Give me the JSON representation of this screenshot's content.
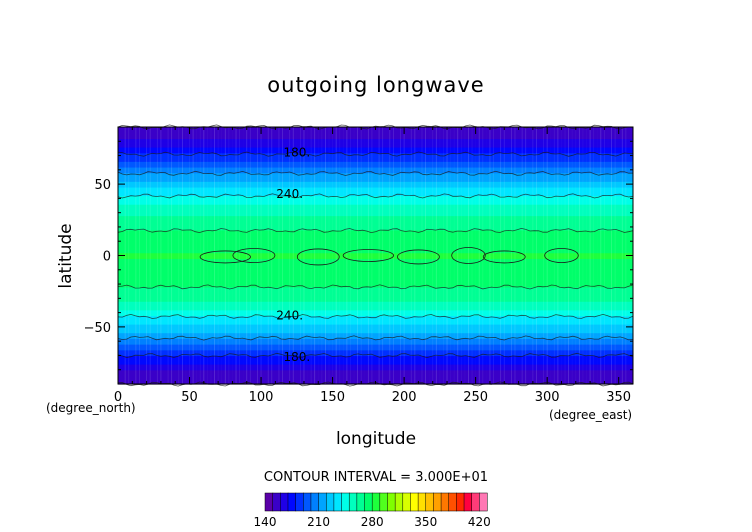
{
  "chart_data": {
    "type": "heatmap",
    "title": "outgoing longwave",
    "xlabel": "longitude",
    "ylabel": "latitude",
    "x_unit_label": "(degree_east)",
    "y_unit_label": "(degree_north)",
    "xlim": [
      0,
      360
    ],
    "ylim": [
      -90,
      90
    ],
    "x_ticks": [
      0,
      50,
      100,
      150,
      200,
      250,
      300,
      350
    ],
    "y_ticks": [
      -50,
      0,
      50
    ],
    "latitude_profile": [
      {
        "lat": -90,
        "value": 150
      },
      {
        "lat": -80,
        "value": 160
      },
      {
        "lat": -70,
        "value": 180
      },
      {
        "lat": -60,
        "value": 205
      },
      {
        "lat": -50,
        "value": 228
      },
      {
        "lat": -40,
        "value": 245
      },
      {
        "lat": -30,
        "value": 262
      },
      {
        "lat": -20,
        "value": 272
      },
      {
        "lat": -10,
        "value": 276
      },
      {
        "lat": 0,
        "value": 281
      },
      {
        "lat": 10,
        "value": 276
      },
      {
        "lat": 20,
        "value": 268
      },
      {
        "lat": 30,
        "value": 258
      },
      {
        "lat": 40,
        "value": 243
      },
      {
        "lat": 50,
        "value": 226
      },
      {
        "lat": 60,
        "value": 205
      },
      {
        "lat": 70,
        "value": 182
      },
      {
        "lat": 80,
        "value": 162
      },
      {
        "lat": 90,
        "value": 152
      }
    ],
    "contour_labels": [
      {
        "text": "180.",
        "lon": 125,
        "lat": 72
      },
      {
        "text": "240.",
        "lon": 120,
        "lat": 43
      },
      {
        "text": "240.",
        "lon": 120,
        "lat": -42
      },
      {
        "text": "180.",
        "lon": 125,
        "lat": -71
      }
    ],
    "contour_interval_text": "CONTOUR INTERVAL = 3.000E+01",
    "colorbar": {
      "min": 140,
      "max": 430,
      "tick_labels": [
        "140",
        "210",
        "280",
        "350",
        "420"
      ],
      "tick_values": [
        140,
        210,
        280,
        350,
        420
      ],
      "colors": [
        "#5a00a8",
        "#3a00c8",
        "#1f00e6",
        "#0008ff",
        "#0030ff",
        "#0058ff",
        "#0080ff",
        "#00a4ff",
        "#00c8ff",
        "#00e6ff",
        "#00ffe8",
        "#00ffbe",
        "#00ff94",
        "#00ff6a",
        "#1eff3c",
        "#50ff1e",
        "#80ff00",
        "#b0ff00",
        "#d8ff00",
        "#ffff00",
        "#ffe000",
        "#ffc000",
        "#ffa000",
        "#ff7800",
        "#ff5000",
        "#ff2800",
        "#ff0040",
        "#ff3c78",
        "#ff78b4"
      ]
    }
  }
}
